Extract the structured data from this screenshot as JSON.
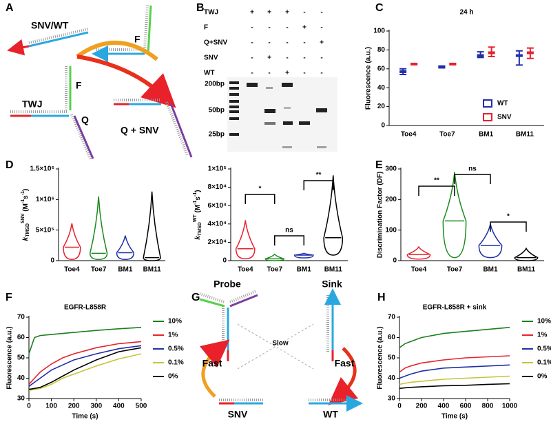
{
  "panel_a": {
    "letter": "A",
    "snv_wt": "SNV/WT",
    "f_top": "F",
    "twj": "TWJ",
    "f_mid": "F",
    "q": "Q",
    "q_snv": "Q + SNV"
  },
  "panel_b": {
    "letter": "B",
    "rows": [
      {
        "label": "TWJ",
        "marks": [
          "+",
          "+",
          "+",
          "-",
          "-"
        ]
      },
      {
        "label": "F",
        "marks": [
          "-",
          "-",
          "-",
          "+",
          "-"
        ]
      },
      {
        "label": "Q+SNV",
        "marks": [
          "-",
          "-",
          "-",
          "-",
          "+"
        ]
      },
      {
        "label": "SNV",
        "marks": [
          "-",
          "+",
          "-",
          "-",
          "-"
        ]
      },
      {
        "label": "WT",
        "marks": [
          "-",
          "-",
          "+",
          "-",
          "-"
        ]
      }
    ],
    "ladder": [
      "200bp",
      "50bp",
      "25bp"
    ]
  },
  "panel_g": {
    "letter": "G",
    "probe": "Probe",
    "sink": "Sink",
    "slow": "Slow",
    "fast_left": "Fast",
    "fast_right": "Fast",
    "snv": "SNV",
    "wt": "WT"
  },
  "chart_data": [
    {
      "type": "box",
      "panel": "C",
      "title": "24 h",
      "ylabel": "Fluorescence (a.u.)",
      "categories": [
        "Toe4",
        "Toe7",
        "BM1",
        "BM11"
      ],
      "series": [
        {
          "name": "WT",
          "color": "#1f2fa8",
          "values": [
            57,
            62,
            74,
            74
          ],
          "low": [
            54,
            61,
            72,
            64
          ],
          "high": [
            60,
            63,
            78,
            79
          ]
        },
        {
          "name": "SNV",
          "color": "#e8212b",
          "values": [
            65,
            65,
            77,
            77
          ],
          "low": [
            65,
            65,
            73,
            71
          ],
          "high": [
            65,
            65,
            83,
            82
          ]
        }
      ],
      "ylim": [
        0,
        100
      ],
      "yticks": [
        0,
        20,
        40,
        60,
        80,
        100
      ]
    },
    {
      "type": "violin",
      "panel": "D",
      "ylabel": [
        {
          "text": "k"
        },
        {
          "text": "TMSD",
          "shift": "sub"
        },
        {
          "text": "SNV",
          "shift": "sup"
        },
        {
          "text": " (M"
        },
        {
          "text": "-1",
          "shift": "sup"
        },
        {
          "text": "s"
        },
        {
          "text": "-1",
          "shift": "sup"
        },
        {
          "text": ")"
        }
      ],
      "categories": [
        "Toe4",
        "Toe7",
        "BM1",
        "BM11"
      ],
      "colors": [
        "#e8212b",
        "#1a8a1a",
        "#1f2fa8",
        "#000000"
      ],
      "min": [
        20000,
        20000,
        20000,
        0
      ],
      "median": [
        220000,
        120000,
        130000,
        50000
      ],
      "max": [
        610000,
        1050000,
        410000,
        1130000
      ],
      "ylim": [
        0,
        1500000
      ],
      "yticks": [
        0,
        {
          "value": 500000,
          "label": "5×10⁵"
        },
        {
          "value": 1000000,
          "label": "1×10⁶"
        },
        {
          "value": 1500000,
          "label": "1.5×10⁶"
        }
      ]
    },
    {
      "type": "violin",
      "ylabel": [
        {
          "text": "k"
        },
        {
          "text": "TMSD",
          "shift": "sub"
        },
        {
          "text": "WT",
          "shift": "sup"
        },
        {
          "text": " (M"
        },
        {
          "text": "-1",
          "shift": "sup"
        },
        {
          "text": "s"
        },
        {
          "text": "-1",
          "shift": "sup"
        },
        {
          "text": ")"
        }
      ],
      "categories": [
        "Toe4",
        "Toe7",
        "BM1",
        "BM11"
      ],
      "colors": [
        "#e8212b",
        "#1a8a1a",
        "#1f2fa8",
        "#000000"
      ],
      "min": [
        2000,
        0,
        3000,
        6000
      ],
      "median": [
        13000,
        2000,
        6000,
        25000
      ],
      "max": [
        44000,
        7000,
        8000,
        93000
      ],
      "ylim": [
        0,
        100000
      ],
      "yticks": [
        0,
        {
          "value": 20000,
          "label": "2×10⁴"
        },
        {
          "value": 40000,
          "label": "4×10⁴"
        },
        {
          "value": 60000,
          "label": "6×10⁴"
        },
        {
          "value": 80000,
          "label": "8×10⁴"
        },
        {
          "value": 100000,
          "label": "1×10⁵"
        }
      ],
      "annotations": [
        "*",
        "ns",
        "**"
      ]
    },
    {
      "type": "violin",
      "panel": "E",
      "ylabel": "Discrimination Factor (DF)",
      "categories": [
        "Toe4",
        "Toe7",
        "BM1",
        "BM11"
      ],
      "colors": [
        "#e8212b",
        "#1a8a1a",
        "#1f2fa8",
        "#000000"
      ],
      "min": [
        5,
        10,
        10,
        0
      ],
      "median": [
        20,
        130,
        50,
        10
      ],
      "max": [
        45,
        290,
        120,
        40
      ],
      "ylim": [
        0,
        300
      ],
      "yticks": [
        0,
        100,
        200,
        300
      ],
      "annotations": [
        "**",
        "ns",
        "*"
      ]
    },
    {
      "type": "line",
      "panel": "F",
      "title": "EGFR-L858R",
      "xlabel": "Time (s)",
      "ylabel": "Fluorescence (a.u.)",
      "x": [
        0,
        25,
        50,
        100,
        150,
        200,
        300,
        400,
        500
      ],
      "series": [
        {
          "name": "10%",
          "color": "#1a7f1a",
          "values": [
            52,
            60,
            61,
            61.5,
            62,
            62.5,
            63.5,
            64.3,
            65
          ]
        },
        {
          "name": "1%",
          "color": "#e8212b",
          "values": [
            37,
            40,
            43,
            47,
            50,
            52,
            55,
            57,
            58
          ]
        },
        {
          "name": "0.5%",
          "color": "#1f2fa8",
          "values": [
            36,
            38,
            40,
            44,
            46.5,
            49,
            52,
            54.5,
            56
          ]
        },
        {
          "name": "0.1%",
          "color": "#c8c23a",
          "values": [
            34,
            34.5,
            35,
            37,
            40,
            42,
            46,
            49.5,
            52
          ]
        },
        {
          "name": "0%",
          "color": "#000000",
          "values": [
            34.5,
            35,
            35.5,
            38,
            41,
            44,
            49,
            53,
            55
          ]
        }
      ],
      "xlim": [
        0,
        500
      ],
      "xticks": [
        0,
        100,
        200,
        300,
        400,
        500
      ],
      "ylim": [
        30,
        70
      ],
      "yticks": [
        30,
        40,
        50,
        60,
        70
      ]
    },
    {
      "type": "line",
      "panel": "H",
      "title": "EGFR-L858R + sink",
      "xlabel": "Time (s)",
      "ylabel": "Fluorescence (a.u.)",
      "x": [
        0,
        50,
        100,
        200,
        400,
        600,
        800,
        1000
      ],
      "series": [
        {
          "name": "10%",
          "color": "#1a7f1a",
          "values": [
            55,
            57,
            58,
            60,
            62,
            63,
            64,
            65
          ]
        },
        {
          "name": "1%",
          "color": "#e8212b",
          "values": [
            43,
            45,
            46,
            47.5,
            49,
            50,
            50.5,
            51
          ]
        },
        {
          "name": "0.5%",
          "color": "#1f2fa8",
          "values": [
            40,
            41,
            42,
            43.5,
            45,
            45.5,
            46,
            46.5
          ]
        },
        {
          "name": "0.1%",
          "color": "#c8c23a",
          "values": [
            37,
            37.5,
            38,
            38.5,
            39.5,
            40,
            40.5,
            41
          ]
        },
        {
          "name": "0%",
          "color": "#000000",
          "values": [
            35,
            35.3,
            35.5,
            35.8,
            36.3,
            36.5,
            37,
            37.3
          ]
        }
      ],
      "xlim": [
        0,
        1000
      ],
      "xticks": [
        0,
        200,
        400,
        600,
        800,
        1000
      ],
      "ylim": [
        30,
        70
      ],
      "yticks": [
        30,
        40,
        50,
        60,
        70
      ]
    }
  ]
}
